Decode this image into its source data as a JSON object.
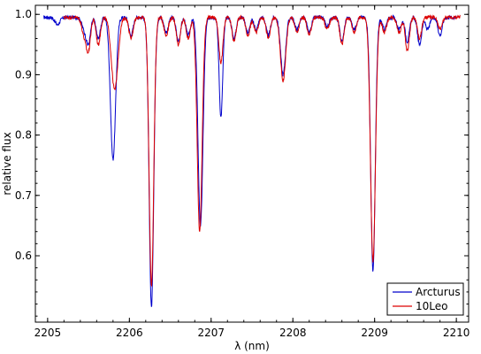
{
  "chart_data": {
    "type": "line",
    "title": "",
    "xlabel": "λ (nm)",
    "ylabel": "relative flux",
    "xlim": [
      2204.85,
      2210.15
    ],
    "ylim": [
      0.49,
      1.015
    ],
    "xticks": [
      2205,
      2206,
      2207,
      2208,
      2209,
      2210
    ],
    "yticks": [
      0.6,
      0.7,
      0.8,
      0.9,
      1.0
    ],
    "xtick_labels": [
      "2205",
      "2206",
      "2207",
      "2208",
      "2209",
      "2210"
    ],
    "ytick_labels": [
      "0.6",
      "0.7",
      "0.8",
      "0.9",
      "1.0"
    ],
    "grid": false,
    "legend": {
      "placement": "bottom-right"
    },
    "series": [
      {
        "name": "Arcturus",
        "color": "#0000cc",
        "baseline": 0.995,
        "x_range": [
          2204.95,
          2210.0
        ],
        "lines": [
          {
            "c": 2205.12,
            "d": 0.012,
            "w": 0.03
          },
          {
            "c": 2205.45,
            "d": 0.02,
            "w": 0.03
          },
          {
            "c": 2205.5,
            "d": 0.04,
            "w": 0.025
          },
          {
            "c": 2205.62,
            "d": 0.035,
            "w": 0.025
          },
          {
            "c": 2205.8,
            "d": 0.235,
            "w": 0.032
          },
          {
            "c": 2206.02,
            "d": 0.03,
            "w": 0.025
          },
          {
            "c": 2206.27,
            "d": 0.48,
            "w": 0.028
          },
          {
            "c": 2206.45,
            "d": 0.025,
            "w": 0.025
          },
          {
            "c": 2206.6,
            "d": 0.04,
            "w": 0.025
          },
          {
            "c": 2206.72,
            "d": 0.03,
            "w": 0.025
          },
          {
            "c": 2206.87,
            "d": 0.345,
            "w": 0.03
          },
          {
            "c": 2207.12,
            "d": 0.165,
            "w": 0.022
          },
          {
            "c": 2207.28,
            "d": 0.035,
            "w": 0.025
          },
          {
            "c": 2207.45,
            "d": 0.025,
            "w": 0.025
          },
          {
            "c": 2207.55,
            "d": 0.02,
            "w": 0.025
          },
          {
            "c": 2207.7,
            "d": 0.03,
            "w": 0.025
          },
          {
            "c": 2207.88,
            "d": 0.095,
            "w": 0.03
          },
          {
            "c": 2208.05,
            "d": 0.02,
            "w": 0.025
          },
          {
            "c": 2208.2,
            "d": 0.025,
            "w": 0.025
          },
          {
            "c": 2208.42,
            "d": 0.015,
            "w": 0.025
          },
          {
            "c": 2208.6,
            "d": 0.04,
            "w": 0.025
          },
          {
            "c": 2208.75,
            "d": 0.02,
            "w": 0.025
          },
          {
            "c": 2208.98,
            "d": 0.42,
            "w": 0.028
          },
          {
            "c": 2209.12,
            "d": 0.02,
            "w": 0.025
          },
          {
            "c": 2209.3,
            "d": 0.02,
            "w": 0.025
          },
          {
            "c": 2209.4,
            "d": 0.04,
            "w": 0.025
          },
          {
            "c": 2209.55,
            "d": 0.045,
            "w": 0.025
          },
          {
            "c": 2209.65,
            "d": 0.02,
            "w": 0.025
          },
          {
            "c": 2209.8,
            "d": 0.03,
            "w": 0.025
          }
        ]
      },
      {
        "name": "10Leo",
        "color": "#dd0000",
        "baseline": 0.995,
        "x_range": [
          2205.2,
          2210.05
        ],
        "lines": [
          {
            "c": 2205.45,
            "d": 0.03,
            "w": 0.03
          },
          {
            "c": 2205.5,
            "d": 0.05,
            "w": 0.025
          },
          {
            "c": 2205.62,
            "d": 0.045,
            "w": 0.025
          },
          {
            "c": 2205.82,
            "d": 0.12,
            "w": 0.04
          },
          {
            "c": 2206.02,
            "d": 0.035,
            "w": 0.025
          },
          {
            "c": 2206.27,
            "d": 0.445,
            "w": 0.028
          },
          {
            "c": 2206.45,
            "d": 0.03,
            "w": 0.025
          },
          {
            "c": 2206.6,
            "d": 0.045,
            "w": 0.025
          },
          {
            "c": 2206.72,
            "d": 0.035,
            "w": 0.025
          },
          {
            "c": 2206.86,
            "d": 0.355,
            "w": 0.03
          },
          {
            "c": 2207.12,
            "d": 0.075,
            "w": 0.025
          },
          {
            "c": 2207.28,
            "d": 0.04,
            "w": 0.025
          },
          {
            "c": 2207.45,
            "d": 0.03,
            "w": 0.025
          },
          {
            "c": 2207.55,
            "d": 0.025,
            "w": 0.025
          },
          {
            "c": 2207.7,
            "d": 0.035,
            "w": 0.025
          },
          {
            "c": 2207.88,
            "d": 0.105,
            "w": 0.032
          },
          {
            "c": 2208.05,
            "d": 0.025,
            "w": 0.025
          },
          {
            "c": 2208.2,
            "d": 0.03,
            "w": 0.025
          },
          {
            "c": 2208.42,
            "d": 0.02,
            "w": 0.025
          },
          {
            "c": 2208.6,
            "d": 0.045,
            "w": 0.025
          },
          {
            "c": 2208.75,
            "d": 0.025,
            "w": 0.025
          },
          {
            "c": 2208.98,
            "d": 0.405,
            "w": 0.03
          },
          {
            "c": 2209.12,
            "d": 0.025,
            "w": 0.025
          },
          {
            "c": 2209.3,
            "d": 0.025,
            "w": 0.025
          },
          {
            "c": 2209.4,
            "d": 0.055,
            "w": 0.025
          },
          {
            "c": 2209.55,
            "d": 0.035,
            "w": 0.025
          },
          {
            "c": 2209.8,
            "d": 0.02,
            "w": 0.025
          }
        ]
      }
    ]
  }
}
